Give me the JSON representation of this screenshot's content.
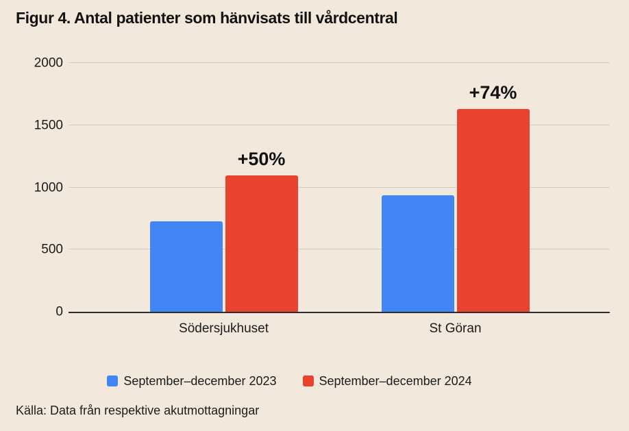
{
  "title": "Figur 4. Antal patienter som hänvisats till vårdcentral",
  "source": "Källa: Data från respektive akutmottagningar",
  "colors": {
    "background": "#f2e9dc",
    "series_2023_blue": "#4285f4",
    "series_2024_red": "#e8432f",
    "gridline": "#d2ccc2",
    "axis_line": "#2e2e2e",
    "text": "#1a1a1a"
  },
  "chart_data": {
    "type": "bar",
    "title": "Figur 4. Antal patienter som hänvisats till vårdcentral",
    "categories": [
      "Södersjukhuset",
      "St Göran"
    ],
    "series": [
      {
        "name": "September–december 2023",
        "color": "#4285f4",
        "values": [
          730,
          935
        ]
      },
      {
        "name": "September–december 2024",
        "color": "#e8432f",
        "values": [
          1095,
          1630
        ]
      }
    ],
    "annotations": [
      {
        "category": "Södersjukhuset",
        "series": "September–december 2024",
        "label": "+50%"
      },
      {
        "category": "St Göran",
        "series": "September–december 2024",
        "label": "+74%"
      }
    ],
    "xlabel": "",
    "ylabel": "",
    "yticks": [
      0,
      500,
      1000,
      1500,
      2000
    ],
    "ylim": [
      0,
      2000
    ],
    "grid": true,
    "legend_position": "bottom"
  }
}
